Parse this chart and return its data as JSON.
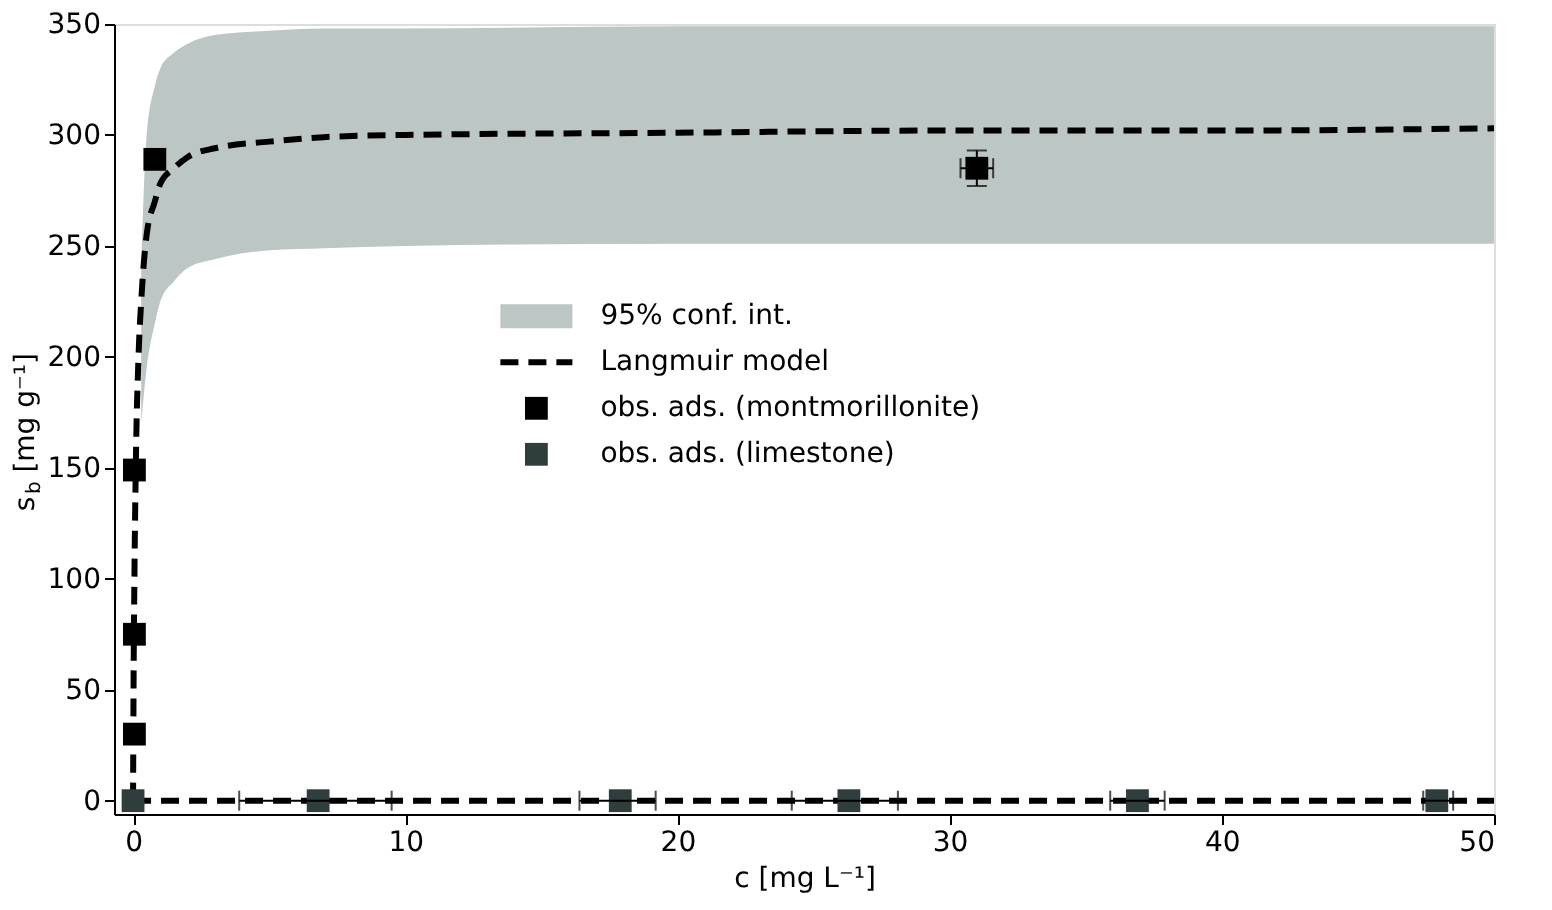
{
  "chart_data": {
    "type": "scatter",
    "xlabel": "c [mg L⁻¹]",
    "ylabel": "s$_{b}$ [mg g⁻¹]",
    "xlim": [
      -0.7,
      50
    ],
    "ylim": [
      -6,
      350
    ],
    "xticks": [
      0,
      10,
      20,
      30,
      40,
      50
    ],
    "yticks": [
      0,
      50,
      100,
      150,
      200,
      250,
      300,
      350
    ],
    "grid": false,
    "legend": "center",
    "marker": "square",
    "annotations": [
      "95% conf. int."
    ],
    "series": [
      {
        "name": "Langmuir model",
        "type": "line",
        "line_style": "dashed",
        "marker": "none",
        "color": "#000000",
        "x": [
          0,
          0.02,
          0.05,
          0.1,
          0.2,
          0.3,
          0.5,
          0.8,
          1,
          1.5,
          2,
          3,
          5,
          7,
          10,
          20,
          30,
          40,
          50
        ],
        "values": [
          0,
          55,
          100,
          150,
          200,
          225,
          255,
          270,
          278,
          285,
          290,
          294,
          297,
          299,
          300,
          301,
          302,
          302,
          303
        ],
        "lower": [
          null,
          null,
          null,
          null,
          null,
          170,
          195,
          215,
          225,
          234,
          240,
          244,
          248,
          249,
          250,
          251,
          251,
          251,
          251
        ],
        "upper": [
          null,
          null,
          null,
          null,
          null,
          240,
          300,
          322,
          330,
          337,
          341,
          345,
          347,
          348,
          348,
          349,
          349,
          349,
          349
        ]
      },
      {
        "type": "line",
        "line_style": "dashed",
        "marker": "none",
        "color": "#000000",
        "x": [
          0,
          50
        ],
        "values": [
          0,
          0
        ]
      },
      {
        "name": "obs. ads. (montmorillonite)",
        "color": "#000000",
        "x": [
          0.05,
          0.05,
          0.05,
          0.8,
          31
        ],
        "values": [
          30,
          75,
          149,
          289,
          285
        ],
        "errors": [
          null,
          null,
          null,
          null,
          8
        ],
        "xerrors": [
          null,
          null,
          null,
          null,
          0.6
        ]
      },
      {
        "name": "obs. ads. (limestone)",
        "color": "#2f3d3d",
        "x": [
          0,
          6.8,
          17.9,
          26.3,
          36.9,
          47.9
        ],
        "values": [
          0,
          0,
          0,
          0,
          0,
          0
        ],
        "xerrors": [
          null,
          [
            3.9,
            9.5
          ],
          [
            16.4,
            19.2
          ],
          [
            24.2,
            28.1
          ],
          [
            35.9,
            37.9
          ],
          [
            47.4,
            48.5
          ]
        ]
      }
    ]
  }
}
